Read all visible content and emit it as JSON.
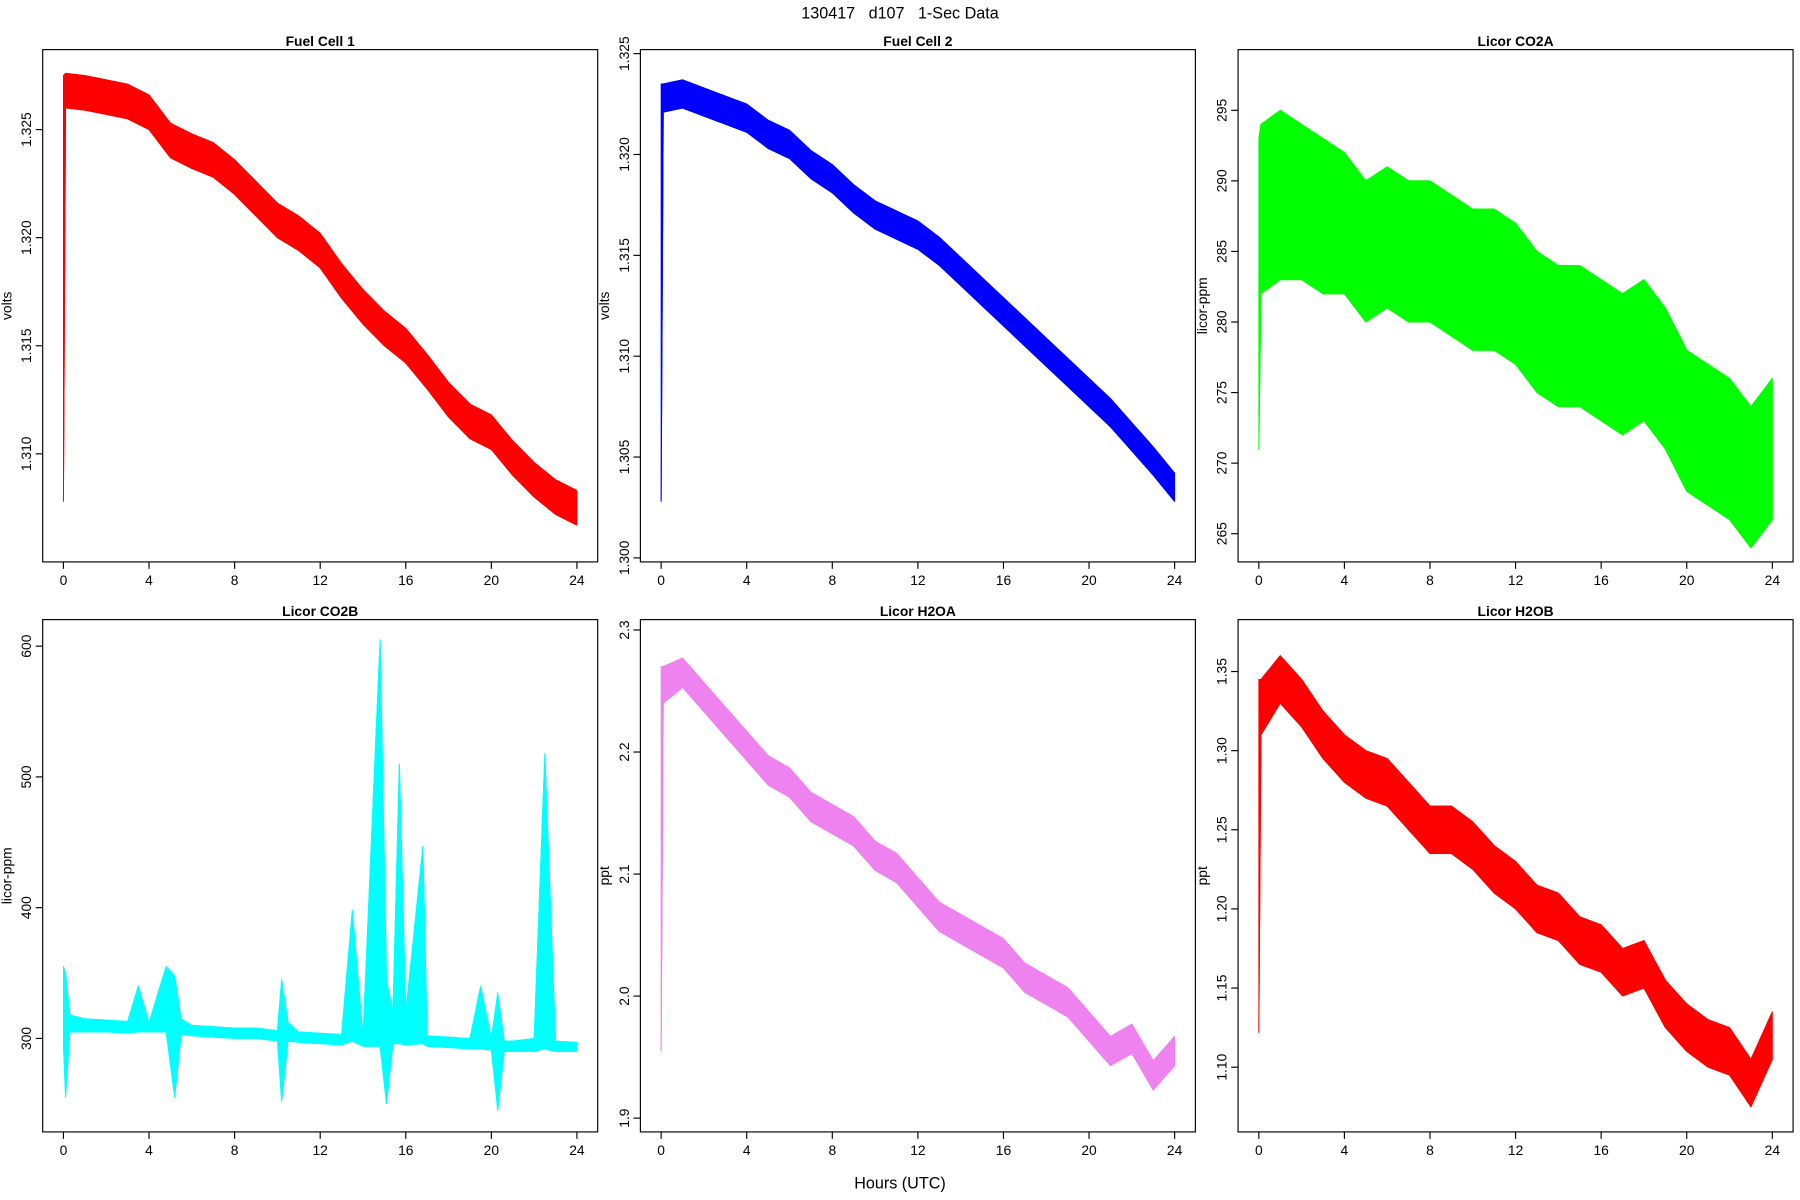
{
  "title": "130417   d107   1-Sec Data",
  "xlabel": "Hours (UTC)",
  "chart_data": [
    {
      "type": "line",
      "title": "Fuel Cell 1",
      "ylabel": "volts",
      "color": "#ff0000",
      "xlim": [
        -0.97,
        24.97
      ],
      "xticks": [
        0,
        4,
        8,
        12,
        16,
        20,
        24
      ],
      "ylim": [
        1.305,
        1.3287
      ],
      "yticks": [
        {
          "value": 1.31,
          "label": "1.310"
        },
        1.315,
        {
          "value": 1.32,
          "label": "1.320"
        },
        1.325
      ],
      "x": [
        0,
        0.1,
        1,
        2,
        3,
        4,
        5,
        6,
        7,
        8,
        9,
        10,
        11,
        12,
        13,
        14,
        15,
        16,
        17,
        18,
        19,
        20,
        21,
        22,
        23,
        24
      ],
      "min": [
        1.3078,
        1.326,
        1.3259,
        1.3257,
        1.3255,
        1.325,
        1.3237,
        1.3232,
        1.3228,
        1.322,
        1.321,
        1.32,
        1.3194,
        1.3186,
        1.3172,
        1.316,
        1.315,
        1.3142,
        1.313,
        1.3117,
        1.3107,
        1.3102,
        1.309,
        1.308,
        1.3072,
        1.3067
      ],
      "max": [
        1.3275,
        1.3276,
        1.3275,
        1.3273,
        1.3271,
        1.3266,
        1.3253,
        1.3248,
        1.3244,
        1.3236,
        1.3226,
        1.3216,
        1.321,
        1.3202,
        1.3188,
        1.3176,
        1.3166,
        1.3158,
        1.3146,
        1.3133,
        1.3123,
        1.3118,
        1.3106,
        1.3096,
        1.3088,
        1.3083
      ]
    },
    {
      "type": "line",
      "title": "Fuel Cell 2",
      "ylabel": "volts",
      "color": "#0000ff",
      "xlim": [
        -0.97,
        24.97
      ],
      "xticks": [
        0,
        4,
        8,
        12,
        16,
        20,
        24
      ],
      "ylim": [
        1.2998,
        1.3252
      ],
      "yticks": [
        {
          "value": 1.3,
          "label": "1.300"
        },
        1.305,
        {
          "value": 1.31,
          "label": "1.310"
        },
        1.315,
        {
          "value": 1.32,
          "label": "1.320"
        },
        1.325
      ],
      "x": [
        0,
        0.1,
        1,
        2,
        3,
        4,
        5,
        6,
        7,
        8,
        9,
        10,
        11,
        12,
        13,
        14,
        15,
        16,
        17,
        18,
        19,
        20,
        21,
        22,
        23,
        24
      ],
      "min": [
        1.3028,
        1.3221,
        1.3223,
        1.3219,
        1.3215,
        1.3211,
        1.3203,
        1.3198,
        1.3188,
        1.3181,
        1.3171,
        1.3163,
        1.3158,
        1.3153,
        1.3145,
        1.3135,
        1.3125,
        1.3115,
        1.3105,
        1.3095,
        1.3085,
        1.3075,
        1.3065,
        1.3053,
        1.3041,
        1.3028
      ],
      "max": [
        1.3235,
        1.3235,
        1.3237,
        1.3233,
        1.3229,
        1.3225,
        1.3217,
        1.3212,
        1.3202,
        1.3195,
        1.3185,
        1.3177,
        1.3172,
        1.3167,
        1.3159,
        1.3149,
        1.3139,
        1.3129,
        1.3119,
        1.3109,
        1.3099,
        1.3089,
        1.3079,
        1.3067,
        1.3055,
        1.3042
      ]
    },
    {
      "type": "line",
      "title": "Licor CO2A",
      "ylabel": "licor-ppm",
      "color": "#00ff00",
      "xlim": [
        -0.97,
        24.97
      ],
      "xticks": [
        0,
        4,
        8,
        12,
        16,
        20,
        24
      ],
      "ylim": [
        263,
        299.3
      ],
      "yticks": [
        265,
        270,
        275,
        280,
        285,
        290,
        295
      ],
      "x": [
        0,
        0.1,
        1,
        2,
        3,
        4,
        5,
        6,
        7,
        8,
        9,
        10,
        11,
        12,
        13,
        14,
        15,
        16,
        17,
        18,
        19,
        20,
        21,
        22,
        23,
        24
      ],
      "min": [
        271,
        282,
        283,
        283,
        282,
        282,
        280,
        281,
        280,
        280,
        279,
        278,
        278,
        277,
        275,
        274,
        274,
        273,
        272,
        273,
        271,
        268,
        267,
        266,
        264,
        266
      ],
      "max": [
        293,
        294,
        295,
        294,
        293,
        292,
        290,
        291,
        290,
        290,
        289,
        288,
        288,
        287,
        285,
        284,
        284,
        283,
        282,
        283,
        281,
        278,
        277,
        276,
        274,
        276
      ]
    },
    {
      "type": "line",
      "title": "Licor CO2B",
      "ylabel": "licor-ppm",
      "color": "#00ffff",
      "xlim": [
        -0.97,
        24.97
      ],
      "xticks": [
        0,
        4,
        8,
        12,
        16,
        20,
        24
      ],
      "ylim": [
        228.5,
        620.3
      ],
      "yticks": [
        300,
        400,
        500,
        600
      ],
      "x": [
        0,
        0.1,
        0.3,
        1,
        2,
        3,
        3.5,
        4,
        4.8,
        5.2,
        5.5,
        6,
        7,
        8,
        9,
        10,
        10.2,
        10.5,
        11,
        12,
        13,
        13.5,
        14,
        14.8,
        15.1,
        15.4,
        15.7,
        16,
        16.8,
        17,
        18,
        19,
        19.5,
        20,
        20.3,
        20.6,
        21,
        22,
        22.5,
        23,
        24
      ],
      "min": [
        295,
        255,
        305,
        305,
        305,
        304,
        305,
        305,
        305,
        255,
        303,
        302,
        301,
        300,
        300,
        298,
        252,
        298,
        297,
        296,
        295,
        298,
        294,
        294,
        250,
        296,
        296,
        295,
        296,
        294,
        293,
        292,
        292,
        291,
        245,
        290,
        290,
        290,
        292,
        290,
        290
      ],
      "max": [
        355,
        350,
        318,
        315,
        314,
        313,
        340,
        312,
        355,
        348,
        315,
        310,
        309,
        308,
        308,
        306,
        345,
        312,
        305,
        304,
        303,
        398,
        302,
        605,
        345,
        320,
        510,
        320,
        447,
        302,
        301,
        300,
        340,
        300,
        335,
        298,
        298,
        300,
        518,
        298,
        297
      ]
    },
    {
      "type": "line",
      "title": "Licor H2OA",
      "ylabel": "ppt",
      "color": "#ee82ee",
      "xlim": [
        -0.97,
        24.97
      ],
      "xticks": [
        0,
        4,
        8,
        12,
        16,
        20,
        24
      ],
      "ylim": [
        1.8887,
        2.3085
      ],
      "yticks": [
        1.9,
        {
          "value": 2,
          "label": "2.0"
        },
        2.1,
        2.2,
        2.3
      ],
      "x": [
        0,
        0.1,
        1,
        2,
        3,
        4,
        5,
        6,
        7,
        8,
        9,
        10,
        11,
        12,
        13,
        14,
        15,
        16,
        17,
        18,
        19,
        20,
        21,
        22,
        23,
        24
      ],
      "min": [
        1.955,
        2.24,
        2.253,
        2.233,
        2.213,
        2.193,
        2.173,
        2.163,
        2.143,
        2.133,
        2.123,
        2.103,
        2.093,
        2.073,
        2.053,
        2.043,
        2.033,
        2.023,
        2.003,
        1.993,
        1.983,
        1.963,
        1.943,
        1.953,
        1.923,
        1.943
      ],
      "max": [
        2.27,
        2.27,
        2.277,
        2.257,
        2.237,
        2.217,
        2.197,
        2.187,
        2.167,
        2.157,
        2.147,
        2.127,
        2.117,
        2.097,
        2.077,
        2.067,
        2.057,
        2.047,
        2.027,
        2.017,
        2.007,
        1.987,
        1.967,
        1.977,
        1.947,
        1.967
      ]
    },
    {
      "type": "line",
      "title": "Licor H2OB",
      "ylabel": "ppt",
      "color": "#ff0000",
      "xlim": [
        -0.97,
        24.97
      ],
      "xticks": [
        0,
        4,
        8,
        12,
        16,
        20,
        24
      ],
      "ylim": [
        1.0591,
        1.3828
      ],
      "yticks": [
        {
          "value": 1.1,
          "label": "1.10"
        },
        1.15,
        {
          "value": 1.2,
          "label": "1.20"
        },
        1.25,
        {
          "value": 1.3,
          "label": "1.30"
        },
        1.35
      ],
      "x": [
        0,
        0.1,
        1,
        2,
        3,
        4,
        5,
        6,
        7,
        8,
        9,
        10,
        11,
        12,
        13,
        14,
        15,
        16,
        17,
        18,
        19,
        20,
        21,
        22,
        23,
        24
      ],
      "min": [
        1.122,
        1.31,
        1.33,
        1.315,
        1.295,
        1.28,
        1.27,
        1.265,
        1.25,
        1.235,
        1.235,
        1.225,
        1.21,
        1.2,
        1.185,
        1.18,
        1.165,
        1.16,
        1.145,
        1.15,
        1.125,
        1.11,
        1.1,
        1.095,
        1.075,
        1.105
      ],
      "max": [
        1.345,
        1.345,
        1.36,
        1.345,
        1.325,
        1.31,
        1.3,
        1.295,
        1.28,
        1.265,
        1.265,
        1.255,
        1.24,
        1.23,
        1.215,
        1.21,
        1.195,
        1.19,
        1.175,
        1.18,
        1.155,
        1.14,
        1.13,
        1.125,
        1.105,
        1.135
      ]
    }
  ]
}
